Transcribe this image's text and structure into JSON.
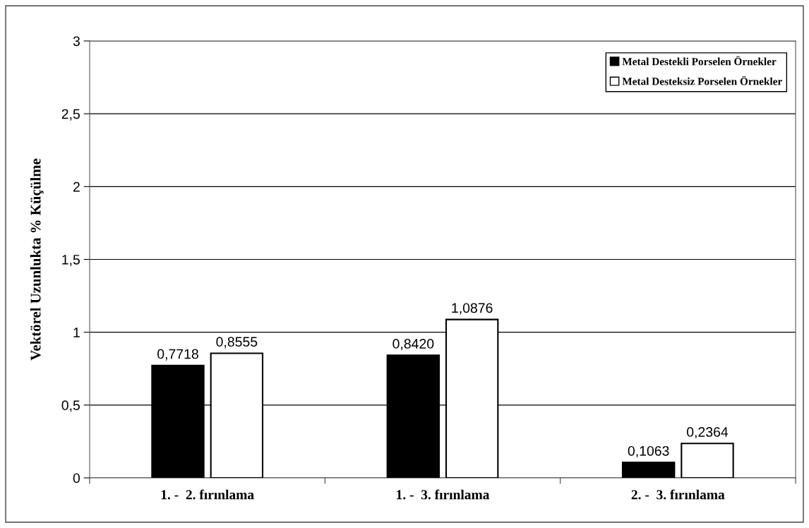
{
  "chart_data": {
    "type": "bar",
    "ylabel": "Vektörel Uzunlukta % Küçülme",
    "categories": [
      "1. -  2. fırınlama",
      "1. -  3. fırınlama",
      "2. -  3. fırınlama"
    ],
    "series": [
      {
        "name": "Metal Destekli Porselen Örnekler",
        "color": "#000000",
        "values": [
          0.7718,
          0.842,
          0.1063
        ],
        "value_labels": [
          "0,7718",
          "0,8420",
          "0,1063"
        ]
      },
      {
        "name": "Metal Desteksiz Porselen Örnekler",
        "color": "#ffffff",
        "values": [
          0.8555,
          1.0876,
          0.2364
        ],
        "value_labels": [
          "0,8555",
          "1,0876",
          "0,2364"
        ]
      }
    ],
    "ylim": [
      0,
      3
    ],
    "yticks": [
      0,
      {
        "value": 0.5,
        "label": "0,5"
      },
      1,
      {
        "value": 1.5,
        "label": "1,5"
      },
      2,
      {
        "value": 2.5,
        "label": "2,5"
      },
      3
    ],
    "grid": "y",
    "legend": "top right"
  }
}
